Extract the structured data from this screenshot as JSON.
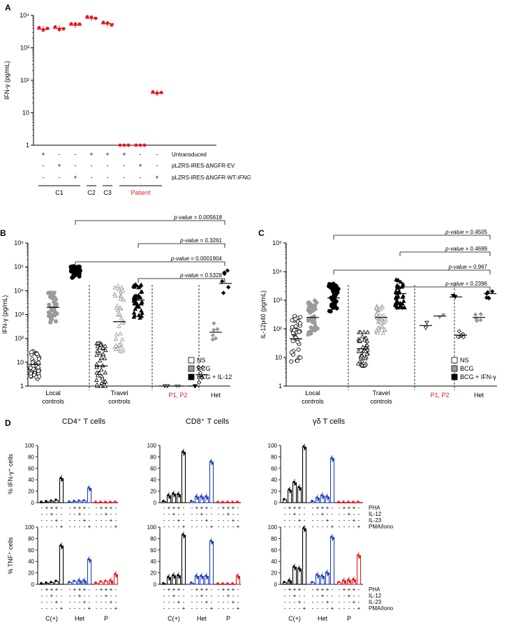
{
  "colors": {
    "red": "#e8171d",
    "blue": "#1f3fb8",
    "gray": "#9a9a9a",
    "black": "#000000"
  },
  "chart_data": [
    {
      "panel": "A",
      "type": "scatter",
      "ylabel": "IFN-γ (pg/mL)",
      "yscale": "log",
      "ylim": [
        1,
        10000
      ],
      "yticks": [
        "1",
        "10",
        "10²",
        "10³",
        "10⁴"
      ],
      "conditions": [
        {
          "name": "Untransduced",
          "marks": [
            "+",
            "-",
            "-",
            "+",
            "+",
            "+",
            "-",
            "-"
          ]
        },
        {
          "name": "pLZRS-IRES-ΔNGFR-EV",
          "marks": [
            "-",
            "+",
            "-",
            "-",
            "-",
            "-",
            "+",
            "-"
          ]
        },
        {
          "name": "pLZRS-IRES-ΔNGFR-WT-IFNG",
          "marks": [
            "-",
            "-",
            "+",
            "-",
            "-",
            "-",
            "-",
            "+"
          ]
        }
      ],
      "groups": [
        {
          "label": "C1",
          "cols": [
            0,
            2
          ],
          "color": "#000000"
        },
        {
          "label": "C2",
          "cols": [
            3,
            3
          ],
          "color": "#000000"
        },
        {
          "label": "C3",
          "cols": [
            4,
            4
          ],
          "color": "#000000"
        },
        {
          "label": "Patient",
          "cols": [
            5,
            7
          ],
          "color": "#e8171d"
        }
      ],
      "series": [
        {
          "values": [
            3800,
            4000,
            5000,
            8200,
            5500,
            1,
            1,
            40
          ]
        }
      ]
    },
    {
      "panel": "B",
      "type": "scatter",
      "ylabel": "IFN-γ (pg/mL)",
      "yscale": "log",
      "ylim": [
        1,
        1000000
      ],
      "yticks": [
        "1",
        "10",
        "10²",
        "10³",
        "10⁴",
        "10⁵",
        "10⁶"
      ],
      "categories": [
        "Local controls",
        "Travel controls",
        "P1, P2",
        "Het"
      ],
      "legend": [
        "NS",
        "BCG",
        "BCG + IL-12"
      ],
      "medians": [
        [
          8,
          2000,
          60000
        ],
        [
          7,
          500,
          4000
        ],
        [
          1,
          1,
          1
        ],
        [
          3,
          180,
          20000
        ]
      ],
      "comparisons": [
        "p-value = 0.005618",
        "p-value = 0.3261",
        "p-value = 0.0001904",
        "p-value = 0.5328"
      ]
    },
    {
      "panel": "C",
      "type": "scatter",
      "ylabel": "IL-12p40 (pg/mL)",
      "yscale": "log",
      "ylim": [
        1,
        100000
      ],
      "yticks": [
        "1",
        "10",
        "10²",
        "10³",
        "10⁴",
        "10⁵"
      ],
      "categories": [
        "Local controls",
        "Travel controls",
        "P1, P2",
        "Het"
      ],
      "legend": [
        "NS",
        "BCG",
        "BCG + IFN-γ"
      ],
      "medians": [
        [
          45,
          250,
          1200
        ],
        [
          20,
          250,
          1700
        ],
        [
          130,
          280,
          1300
        ],
        [
          60,
          250,
          1700
        ]
      ],
      "comparisons": [
        "p-value = 0.4505",
        "p-value = 0.4699",
        "p-value = 0.967",
        "p-value = 0.2396"
      ]
    },
    {
      "panel": "D",
      "type": "bar",
      "conditions": [
        "PHA",
        "IL-12",
        "IL-23",
        "PMA/Iono"
      ],
      "condition_marks": [
        [
          "-",
          "+",
          "+",
          "+",
          "-"
        ],
        [
          "-",
          "-",
          "+",
          "-",
          "-"
        ],
        [
          "-",
          "-",
          "-",
          "+",
          "-"
        ],
        [
          "-",
          "-",
          "-",
          "-",
          "+"
        ]
      ],
      "groups": [
        "C(+)",
        "Het",
        "P"
      ],
      "ylim": [
        0,
        100
      ],
      "yticks": [
        "0",
        "20",
        "40",
        "60",
        "80",
        "100"
      ],
      "rows": [
        {
          "ylabel": "% IFN-γ⁺ cells",
          "panels": [
            {
              "title": "CD4⁺ T cells",
              "values": [
                [
                  0.5,
                  1.5,
                  2.5,
                  4,
                  42
                ],
                [
                  1,
                  2,
                  2.5,
                  3,
                  25
                ],
                [
                  0.3,
                  0.3,
                  0.3,
                  0.3,
                  0.5
                ]
              ]
            },
            {
              "title": "CD8⁺ T cells",
              "values": [
                [
                  2,
                  12,
                  15,
                  14,
                  88
                ],
                [
                  2,
                  10,
                  10,
                  10,
                  71
                ],
                [
                  0.3,
                  0.3,
                  0.3,
                  0.3,
                  0.5
                ]
              ]
            },
            {
              "title": "γδ T cells",
              "values": [
                [
                  5,
                  22,
                  35,
                  26,
                  97
                ],
                [
                  2,
                  8,
                  12,
                  10,
                  77
                ],
                [
                  0.3,
                  0.3,
                  0.3,
                  0.3,
                  0.5
                ]
              ]
            }
          ]
        },
        {
          "ylabel": "% TNF⁺ cells",
          "panels": [
            {
              "title": "",
              "values": [
                [
                  1,
                  2,
                  3,
                  5,
                  67
                ],
                [
                  3,
                  5,
                  6,
                  6,
                  43
                ],
                [
                  2,
                  4,
                  5,
                  6,
                  17
                ]
              ]
            },
            {
              "title": "",
              "values": [
                [
                  1,
                  12,
                  15,
                  15,
                  86
                ],
                [
                  2,
                  14,
                  14,
                  14,
                  75
                ],
                [
                  0.5,
                  0.5,
                  0.5,
                  0.5,
                  14
                ]
              ]
            },
            {
              "title": "",
              "values": [
                [
                  3,
                  6,
                  30,
                  27,
                  97
                ],
                [
                  3,
                  16,
                  14,
                  20,
                  82
                ],
                [
                  3,
                  6,
                  7,
                  8,
                  50
                ]
              ]
            }
          ]
        }
      ]
    }
  ]
}
